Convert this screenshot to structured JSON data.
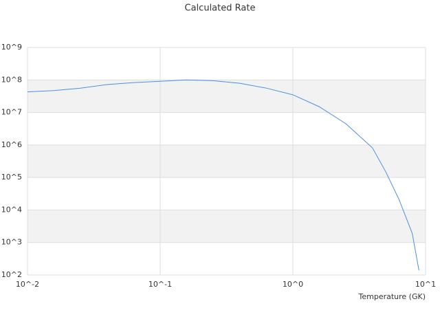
{
  "chart_data": {
    "type": "line",
    "title": "Calculated Rate",
    "xlabel": "Temperature (GK)",
    "x": [
      0.01,
      0.0158,
      0.0251,
      0.0398,
      0.0631,
      0.1,
      0.158,
      0.251,
      0.398,
      0.631,
      1.0,
      1.58,
      2.51,
      3.98,
      5.01,
      6.31,
      7.94,
      8.91
    ],
    "values": [
      43000000,
      47000000,
      56000000,
      72000000,
      83000000,
      91000000,
      100000000,
      95000000,
      79000000,
      56000000,
      35000000,
      15000000,
      4500000,
      810000,
      150000,
      21000,
      1900,
      140
    ],
    "color": "#4a90e2",
    "xlog": true,
    "ylog": true,
    "xlim": [
      0.01,
      10
    ],
    "ylim": [
      100,
      1000000000
    ],
    "xticks": [
      {
        "value": 0.01,
        "label": "10^-2"
      },
      {
        "value": 0.1,
        "label": "10^-1"
      },
      {
        "value": 1,
        "label": "10^0"
      },
      {
        "value": 10,
        "label": "10^1"
      }
    ],
    "yticks": [
      {
        "value": 100,
        "label": "10^2"
      },
      {
        "value": 1000,
        "label": "10^3"
      },
      {
        "value": 10000,
        "label": "10^4"
      },
      {
        "value": 100000,
        "label": "10^5"
      },
      {
        "value": 1000000,
        "label": "10^6"
      },
      {
        "value": 10000000,
        "label": "10^7"
      },
      {
        "value": 100000000,
        "label": "10^8"
      },
      {
        "value": 1000000000,
        "label": "10^9"
      }
    ],
    "grid": true,
    "band_color": "#f2f2f2"
  }
}
